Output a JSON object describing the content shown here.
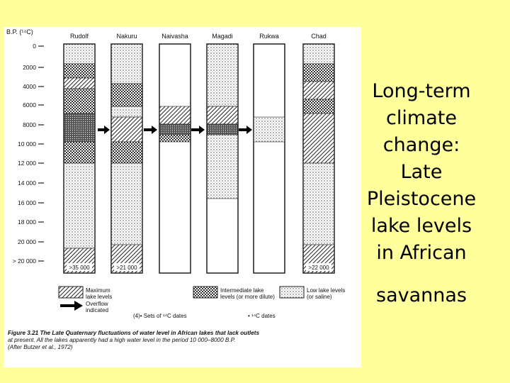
{
  "slide": {
    "title_lines": [
      "Long-term",
      "climate",
      "change:",
      "Late",
      "Pleistocene",
      "lake levels",
      "in African",
      "savannas"
    ]
  },
  "figure": {
    "axis_label": "B.P. (¹⁴C)",
    "ticks": [
      "0",
      "2000",
      "4000",
      "6000",
      "8000",
      "10 000",
      "12 000",
      "14 000",
      "16 000",
      "18 000",
      "20 000",
      "> 20 000"
    ],
    "lakes": [
      "Rudolf",
      "Nakuru",
      "Naivasha",
      "Magadi",
      "Rukwa",
      "Chad"
    ],
    "age_labels": [
      ">35 000",
      ">21 000",
      ">22 000"
    ],
    "legend": {
      "maximum": [
        "Maximum",
        "lake levels"
      ],
      "intermediate": [
        "Intermediate lake",
        "levels (or more dilute)"
      ],
      "low": [
        "Low lake levels",
        "(or saline)"
      ],
      "overflow": [
        "Overflow",
        "indicated"
      ],
      "sets": "(4)•  Sets of ¹⁴C dates",
      "dates": "•   ¹⁴C dates"
    },
    "caption": [
      "Figure 3.21 The Late Quaternary fluctuations of water level in African lakes that lack outlets",
      "at present. All the lakes apparently had a high water level in the period 10 000–8000 B.P.",
      "(After Butzer et al., 1972)"
    ]
  }
}
